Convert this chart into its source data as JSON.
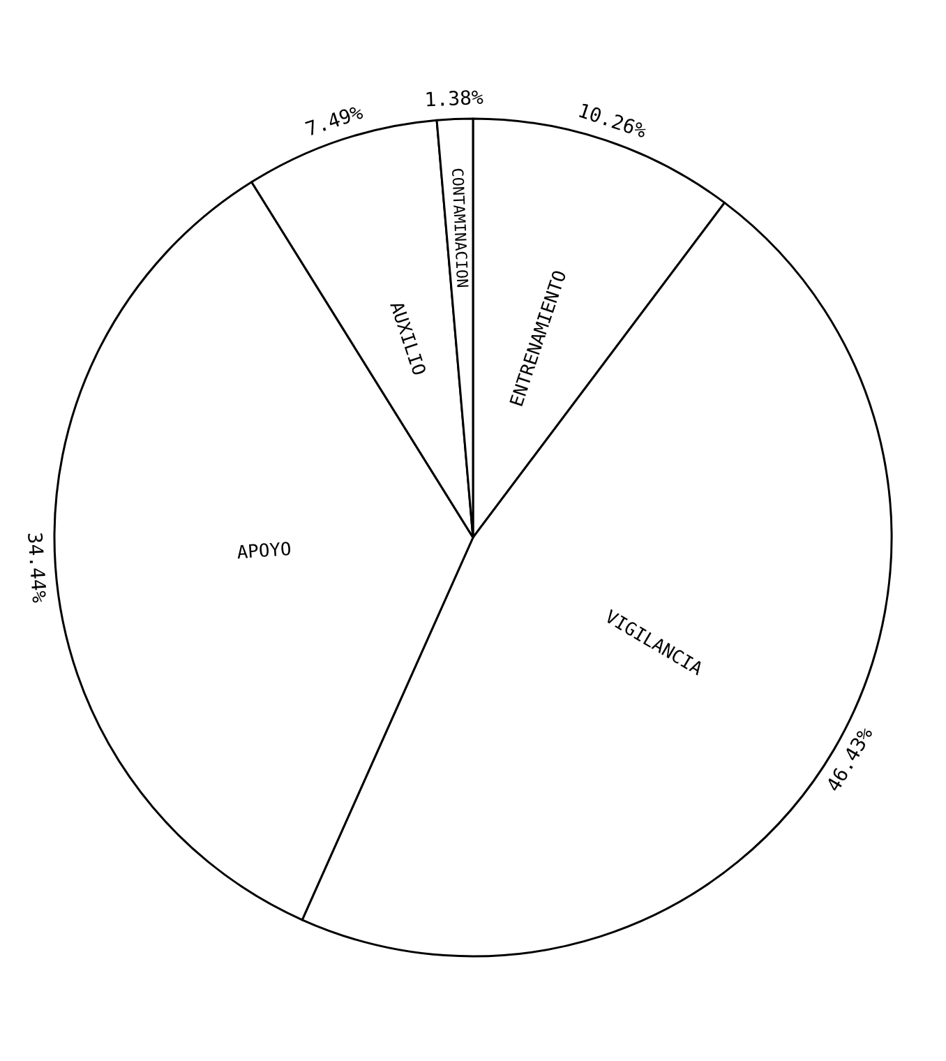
{
  "chart_data": {
    "type": "pie",
    "categories": [
      "ENTRENAMIENTO",
      "VIGILANCIA",
      "APOYO",
      "AUXILIO",
      "CONTAMINACION"
    ],
    "values": [
      10.26,
      46.43,
      34.44,
      7.49,
      1.38
    ],
    "colors": [
      "#ffffff",
      "#ffffff",
      "#ffffff",
      "#ffffff",
      "#ffffff"
    ],
    "value_labels": [
      "10.26%",
      "46.43%",
      "34.44%",
      "7.49%",
      "1.38%"
    ]
  }
}
